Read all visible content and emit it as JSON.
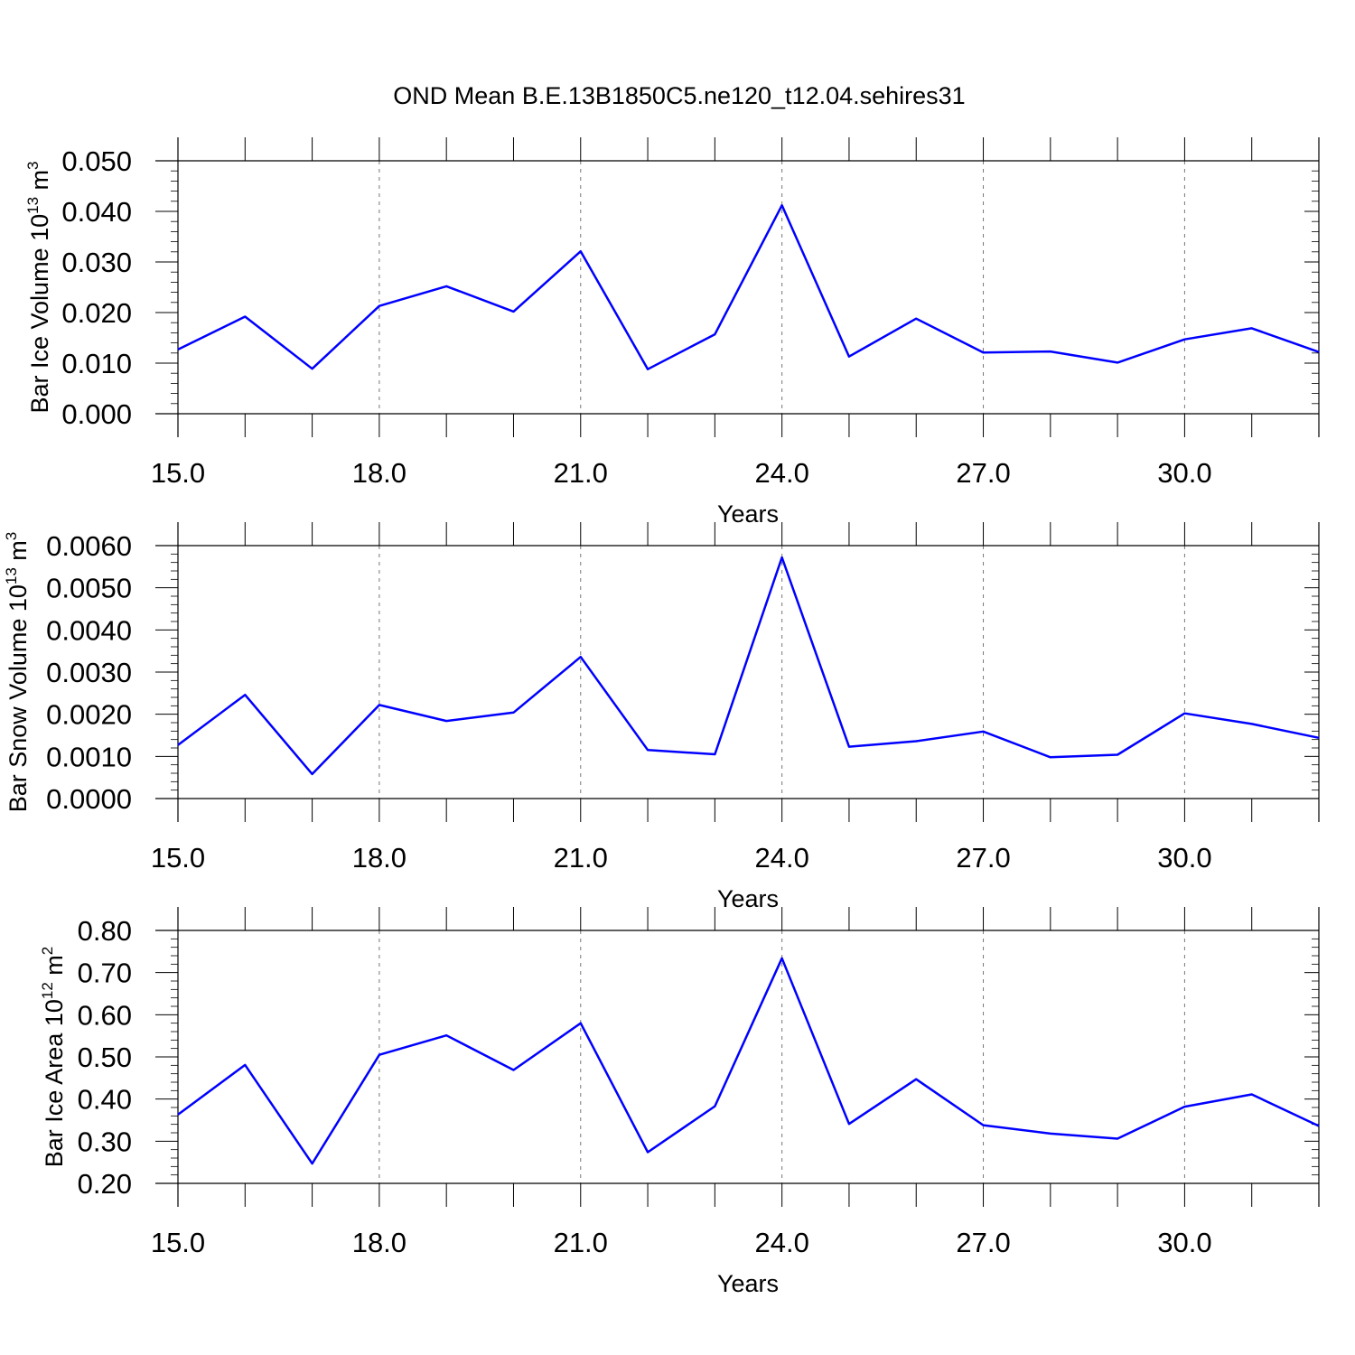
{
  "title": "OND Mean B.E.13B1850C5.ne120_t12.04.sehires31",
  "chart_data": [
    {
      "type": "line",
      "ylabel": {
        "main": "Bar Ice Volume 10",
        "sup": "13",
        "unit": " m",
        "unit_sup": "3"
      },
      "xlabel": "Years",
      "ylim": [
        0.0,
        0.05
      ],
      "yticks": [
        0.0,
        0.01,
        0.02,
        0.03,
        0.04,
        0.05
      ],
      "ytick_labels": [
        "0.000",
        "0.010",
        "0.020",
        "0.030",
        "0.040",
        "0.050"
      ],
      "xlim": [
        15,
        32
      ],
      "xticks": [
        15,
        18,
        21,
        24,
        27,
        30
      ],
      "xtick_labels": [
        "15.0",
        "18.0",
        "21.0",
        "24.0",
        "27.0",
        "30.0"
      ],
      "x": [
        15,
        16,
        17,
        18,
        19,
        20,
        21,
        22,
        23,
        24,
        25,
        26,
        27,
        28,
        29,
        30,
        31,
        32
      ],
      "series": [
        {
          "color": "#0000ff",
          "values": [
            0.0127,
            0.0192,
            0.0089,
            0.0213,
            0.0252,
            0.0202,
            0.0321,
            0.0088,
            0.0157,
            0.0412,
            0.0113,
            0.0188,
            0.0121,
            0.0123,
            0.0101,
            0.0147,
            0.0169,
            0.0122
          ]
        }
      ],
      "grid": "vertical dashed at major x ticks"
    },
    {
      "type": "line",
      "ylabel": {
        "main": "Bar Snow Volume 10",
        "sup": "13",
        "unit": " m",
        "unit_sup": "3"
      },
      "xlabel": "Years",
      "ylim": [
        0.0,
        0.006
      ],
      "yticks": [
        0.0,
        0.001,
        0.002,
        0.003,
        0.004,
        0.005,
        0.006
      ],
      "ytick_labels": [
        "0.0000",
        "0.0010",
        "0.0020",
        "0.0030",
        "0.0040",
        "0.0050",
        "0.0060"
      ],
      "xlim": [
        15,
        32
      ],
      "xticks": [
        15,
        18,
        21,
        24,
        27,
        30
      ],
      "xtick_labels": [
        "15.0",
        "18.0",
        "21.0",
        "24.0",
        "27.0",
        "30.0"
      ],
      "x": [
        15,
        16,
        17,
        18,
        19,
        20,
        21,
        22,
        23,
        24,
        25,
        26,
        27,
        28,
        29,
        30,
        31,
        32
      ],
      "series": [
        {
          "color": "#0000ff",
          "values": [
            0.00127,
            0.00246,
            0.00058,
            0.00222,
            0.00184,
            0.00204,
            0.00336,
            0.00115,
            0.00105,
            0.00572,
            0.00123,
            0.00136,
            0.00159,
            0.00098,
            0.00104,
            0.00202,
            0.00177,
            0.00144
          ]
        }
      ],
      "grid": "vertical dashed at major x ticks"
    },
    {
      "type": "line",
      "ylabel": {
        "main": "Bar Ice Area 10",
        "sup": "12",
        "unit": " m",
        "unit_sup": "2"
      },
      "xlabel": "Years",
      "ylim": [
        0.2,
        0.8
      ],
      "yticks": [
        0.2,
        0.3,
        0.4,
        0.5,
        0.6,
        0.7,
        0.8
      ],
      "ytick_labels": [
        "0.20",
        "0.30",
        "0.40",
        "0.50",
        "0.60",
        "0.70",
        "0.80"
      ],
      "xlim": [
        15,
        32
      ],
      "xticks": [
        15,
        18,
        21,
        24,
        27,
        30
      ],
      "xtick_labels": [
        "15.0",
        "18.0",
        "21.0",
        "24.0",
        "27.0",
        "30.0"
      ],
      "x": [
        15,
        16,
        17,
        18,
        19,
        20,
        21,
        22,
        23,
        24,
        25,
        26,
        27,
        28,
        29,
        30,
        31,
        32
      ],
      "series": [
        {
          "color": "#0000ff",
          "values": [
            0.363,
            0.481,
            0.247,
            0.505,
            0.551,
            0.469,
            0.58,
            0.274,
            0.383,
            0.734,
            0.341,
            0.447,
            0.338,
            0.318,
            0.306,
            0.382,
            0.411,
            0.336
          ]
        }
      ],
      "grid": "vertical dashed at major x ticks"
    }
  ]
}
